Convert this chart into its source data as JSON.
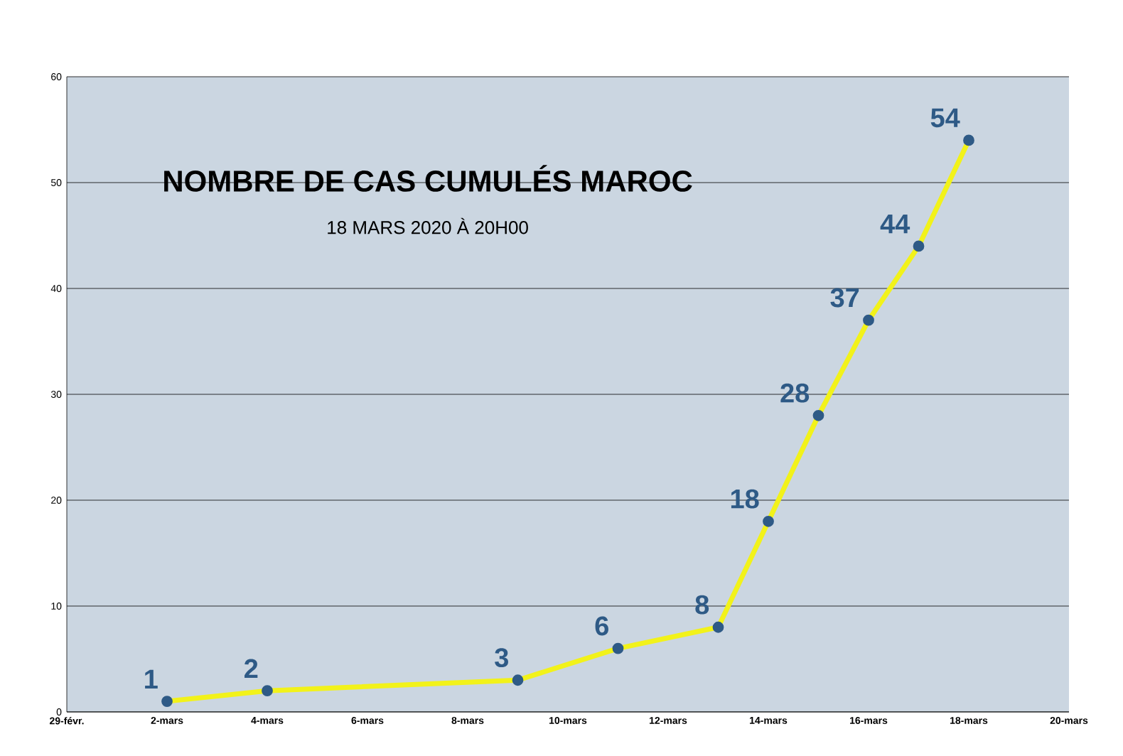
{
  "chart_data": {
    "type": "line",
    "title": "NOMBRE DE CAS CUMULÉS  MAROC",
    "subtitle": "18 MARS 2020 À 20H00",
    "x": [
      "2020-03-02",
      "2020-03-04",
      "2020-03-09",
      "2020-03-11",
      "2020-03-13",
      "2020-03-14",
      "2020-03-15",
      "2020-03-16",
      "2020-03-17",
      "2020-03-18"
    ],
    "series": [
      {
        "color": "#f2f21a",
        "values": [
          1,
          2,
          3,
          6,
          8,
          18,
          28,
          37,
          44,
          54
        ]
      }
    ],
    "xlim": [
      "2020-02-29",
      "2020-03-20"
    ],
    "xticks": [
      {
        "value": "2020-02-29",
        "label": "29-févr."
      },
      {
        "value": "2020-03-02",
        "label": "2-mars"
      },
      {
        "value": "2020-03-04",
        "label": "4-mars"
      },
      {
        "value": "2020-03-06",
        "label": "6-mars"
      },
      {
        "value": "2020-03-08",
        "label": "8-mars"
      },
      {
        "value": "2020-03-10",
        "label": "10-mars"
      },
      {
        "value": "2020-03-12",
        "label": "12-mars"
      },
      {
        "value": "2020-03-14",
        "label": "14-mars"
      },
      {
        "value": "2020-03-16",
        "label": "16-mars"
      },
      {
        "value": "2020-03-18",
        "label": "18-mars"
      },
      {
        "value": "2020-03-20",
        "label": "20-mars"
      }
    ],
    "ylim": [
      0,
      60
    ],
    "yticks": [
      0,
      10,
      20,
      30,
      40,
      50,
      60
    ],
    "grid": "y",
    "marker": "circle",
    "data_labels": true
  }
}
